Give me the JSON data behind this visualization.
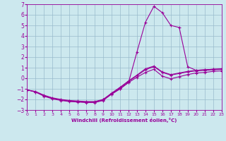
{
  "xlabel": "Windchill (Refroidissement éolien,°C)",
  "background_color": "#cce8ee",
  "grid_color": "#99bbcc",
  "line_color": "#990099",
  "xlim": [
    0,
    23
  ],
  "ylim": [
    -3,
    7
  ],
  "xticks": [
    0,
    1,
    2,
    3,
    4,
    5,
    6,
    7,
    8,
    9,
    10,
    11,
    12,
    13,
    14,
    15,
    16,
    17,
    18,
    19,
    20,
    21,
    22,
    23
  ],
  "yticks": [
    -3,
    -2,
    -1,
    0,
    1,
    2,
    3,
    4,
    5,
    6,
    7
  ],
  "lines": [
    {
      "x": [
        0,
        1,
        2,
        3,
        4,
        5,
        6,
        7,
        8,
        9,
        10,
        11,
        12,
        13,
        14,
        15,
        16,
        17,
        18,
        19,
        20,
        21,
        22,
        23
      ],
      "y": [
        -1.1,
        -1.3,
        -1.65,
        -1.9,
        -2.05,
        -2.15,
        -2.2,
        -2.25,
        -2.25,
        -2.05,
        -1.45,
        -0.9,
        -0.3,
        0.25,
        0.8,
        1.1,
        0.55,
        0.3,
        0.45,
        0.6,
        0.7,
        0.75,
        0.8,
        0.85
      ]
    },
    {
      "x": [
        0,
        1,
        2,
        3,
        4,
        5,
        6,
        7,
        8,
        9,
        10,
        11,
        12,
        13,
        14,
        15,
        16,
        17,
        18,
        19,
        20,
        21,
        22,
        23
      ],
      "y": [
        -1.1,
        -1.3,
        -1.7,
        -1.95,
        -2.1,
        -2.2,
        -2.25,
        -2.3,
        -2.3,
        -2.1,
        -1.5,
        -1.0,
        -0.4,
        0.1,
        0.55,
        0.85,
        0.2,
        -0.05,
        0.15,
        0.35,
        0.5,
        0.55,
        0.65,
        0.7
      ]
    },
    {
      "x": [
        0,
        1,
        2,
        3,
        4,
        5,
        6,
        7,
        8,
        9,
        10,
        11,
        12,
        13,
        14,
        15,
        16,
        17,
        18,
        19,
        20,
        21,
        22,
        23
      ],
      "y": [
        -1.1,
        -1.25,
        -1.6,
        -1.85,
        -2.0,
        -2.1,
        -2.15,
        -2.2,
        -2.2,
        -2.0,
        -1.4,
        -0.85,
        -0.25,
        0.3,
        0.9,
        1.15,
        0.6,
        0.35,
        0.5,
        0.65,
        0.75,
        0.8,
        0.85,
        0.9
      ]
    },
    {
      "x": [
        9,
        10,
        11,
        12,
        13,
        14,
        15,
        16,
        17,
        18,
        19,
        20,
        21,
        22,
        23
      ],
      "y": [
        -2.0,
        -1.5,
        -1.0,
        -0.4,
        2.5,
        5.3,
        6.8,
        6.2,
        5.0,
        4.8,
        1.1,
        0.75,
        0.8,
        0.85,
        0.85
      ]
    }
  ]
}
